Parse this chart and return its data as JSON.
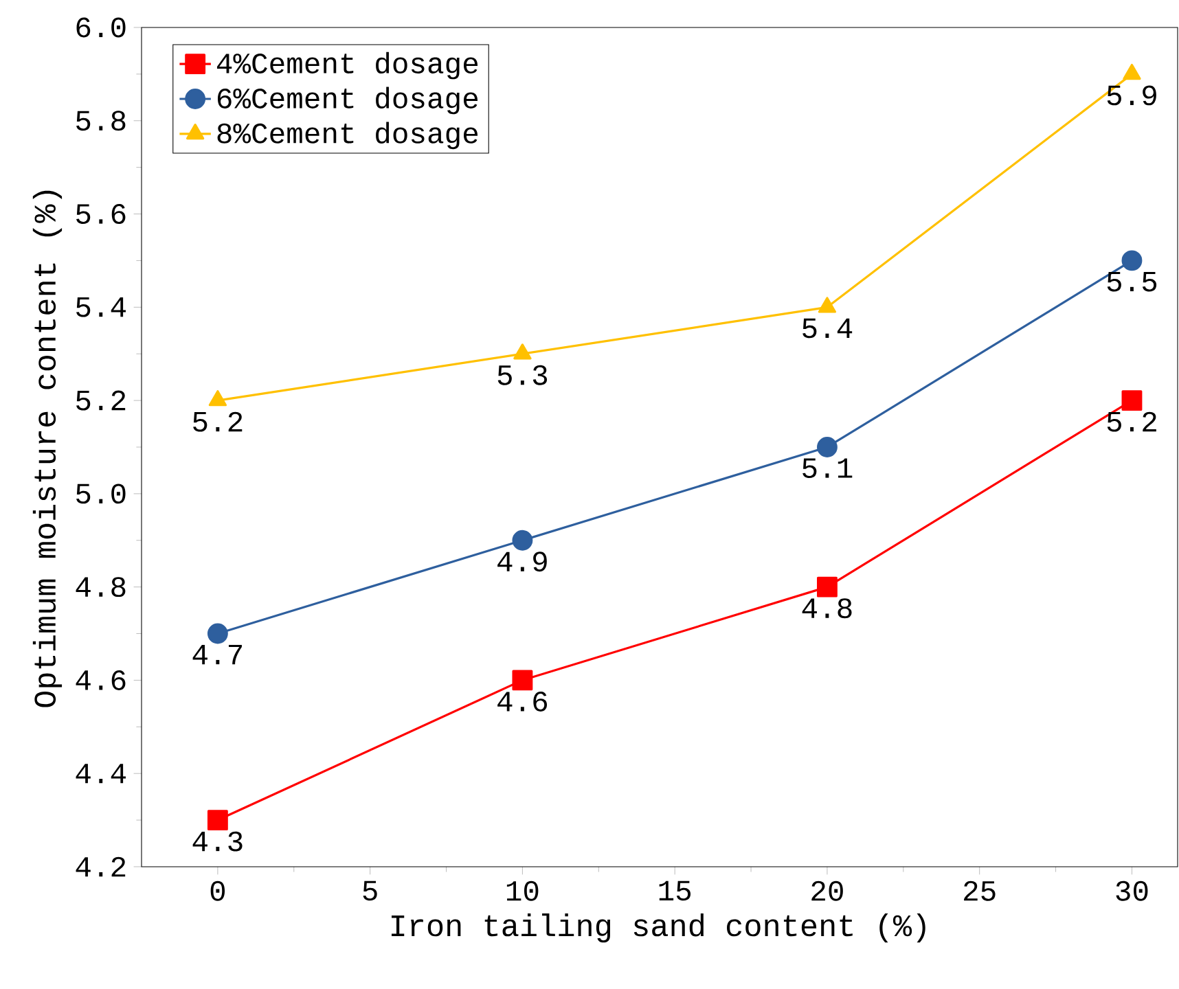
{
  "chart_data": {
    "type": "line",
    "xlabel": "Iron tailing sand content (%)",
    "ylabel": "Optimum moisture content (%)",
    "x": [
      0,
      10,
      20,
      30
    ],
    "series": [
      {
        "name": "4%Cement dosage",
        "color": "#ff0000",
        "marker": "square",
        "values": [
          4.3,
          4.6,
          4.8,
          5.2
        ]
      },
      {
        "name": "6%Cement dosage",
        "color": "#2e5f9e",
        "marker": "circle",
        "values": [
          4.7,
          4.9,
          5.1,
          5.5
        ]
      },
      {
        "name": "8%Cement dosage",
        "color": "#ffc000",
        "marker": "triangle",
        "values": [
          5.2,
          5.3,
          5.4,
          5.9
        ]
      }
    ],
    "xlim": [
      -2.5,
      31.5
    ],
    "ylim": [
      4.2,
      6.0
    ],
    "xticks": [
      0,
      5,
      10,
      15,
      20,
      25,
      30
    ],
    "yticks": [
      4.2,
      4.4,
      4.6,
      4.8,
      {
        "value": 5,
        "label": "5.0"
      },
      5.2,
      5.4,
      5.6,
      5.8,
      {
        "value": 6,
        "label": "6.0"
      }
    ],
    "legend": "top left",
    "data_labels": true,
    "grid": false
  }
}
